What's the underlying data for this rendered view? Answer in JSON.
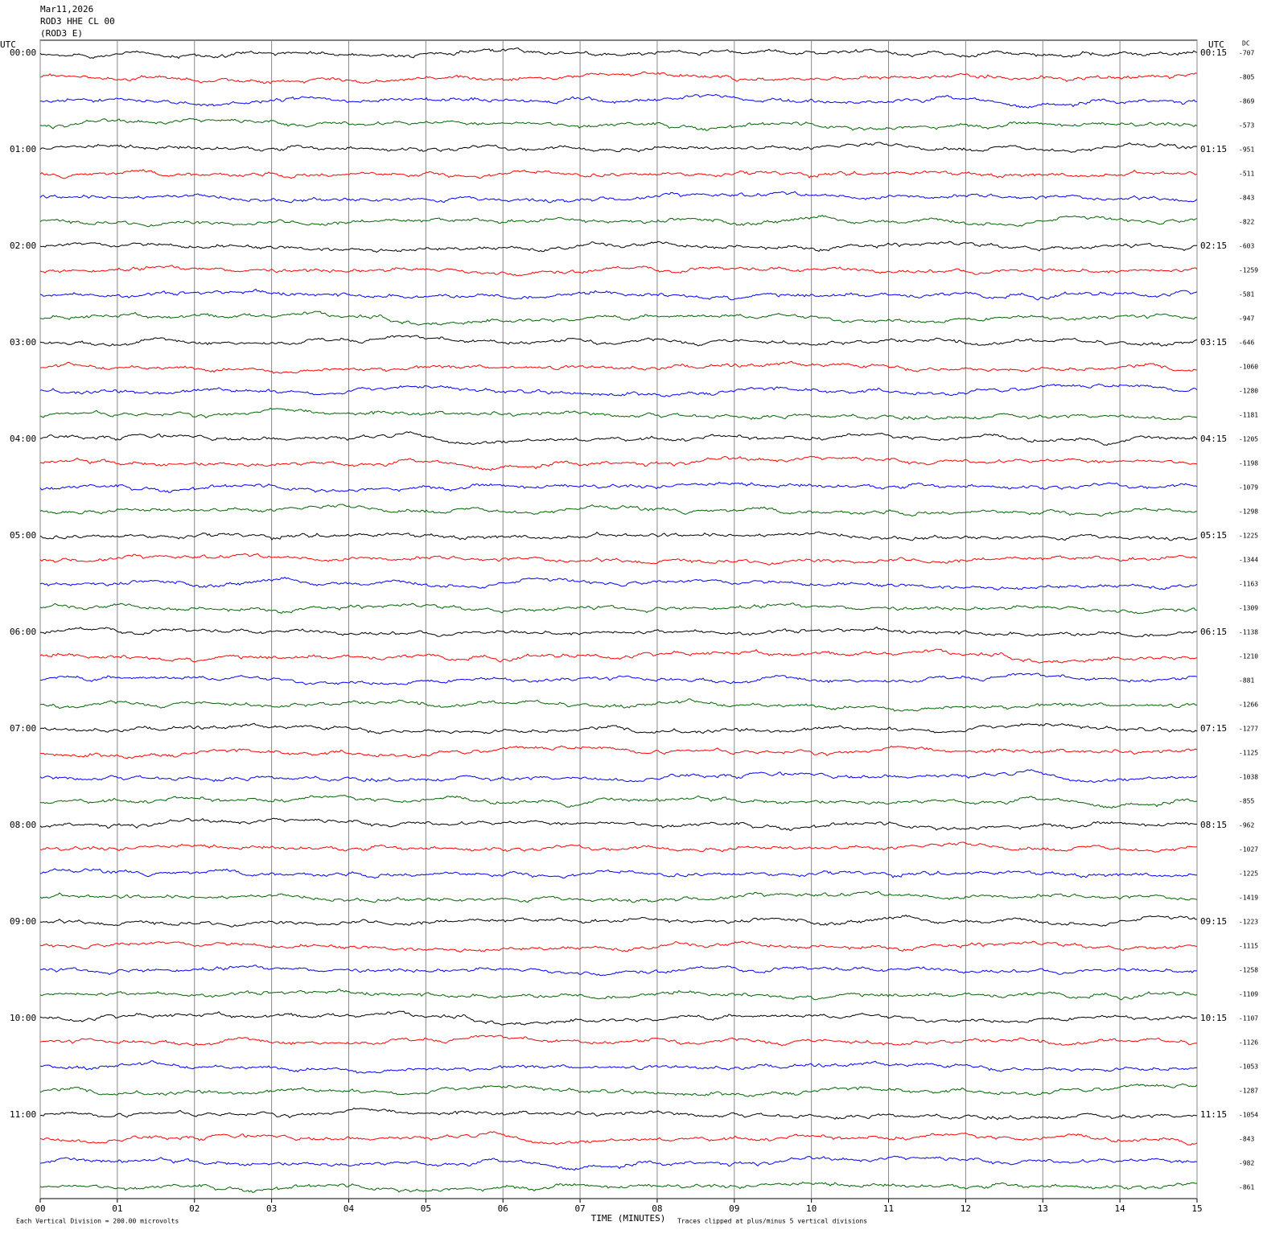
{
  "chart_data": {
    "type": "helicorder",
    "title_lines": [
      "Mar11,2026",
      "ROD3 HHE CL 00",
      "(ROD3 E)"
    ],
    "left_axis_label": "UTC",
    "right_axis_label": "UTC",
    "dc_label": "DC",
    "xlabel": "TIME (MINUTES)",
    "scale_note": "Each Vertical Division =  200.00 microvolts",
    "clip_note": "Traces clipped at plus/minus 5 vertical divisions",
    "xlim": [
      0,
      15
    ],
    "xticks": [
      {
        "value": 0,
        "label": "00"
      },
      {
        "value": 1,
        "label": "01"
      },
      {
        "value": 2,
        "label": "02"
      },
      {
        "value": 3,
        "label": "03"
      },
      {
        "value": 4,
        "label": "04"
      },
      {
        "value": 5,
        "label": "05"
      },
      {
        "value": 6,
        "label": "06"
      },
      {
        "value": 7,
        "label": "07"
      },
      {
        "value": 8,
        "label": "08"
      },
      {
        "value": 9,
        "label": "09"
      },
      {
        "value": 10,
        "label": "10"
      },
      {
        "value": 11,
        "label": "11"
      },
      {
        "value": 12,
        "label": "12"
      },
      {
        "value": 13,
        "label": "13"
      },
      {
        "value": 14,
        "label": "14"
      },
      {
        "value": 15,
        "label": "15"
      }
    ],
    "grid": true,
    "trace_colors": [
      "#000000",
      "#ff0000",
      "#0000ff",
      "#006400"
    ],
    "left_times": [
      "00:00",
      "01:00",
      "02:00",
      "03:00",
      "04:00",
      "05:00",
      "06:00",
      "07:00",
      "08:00",
      "09:00",
      "10:00",
      "11:00"
    ],
    "right_times": [
      "00:15",
      "01:15",
      "02:15",
      "03:15",
      "04:15",
      "05:15",
      "06:15",
      "07:15",
      "08:15",
      "09:15",
      "10:15",
      "11:15"
    ],
    "dc_values": [
      -707,
      -805,
      -869,
      -573,
      -951,
      -511,
      -843,
      -822,
      -603,
      -1259,
      -581,
      -947,
      -646,
      -1060,
      -1280,
      -1181,
      -1205,
      -1198,
      -1079,
      -1298,
      -1225,
      -1344,
      -1163,
      -1309,
      -1138,
      -1210,
      -881,
      -1266,
      -1277,
      -1125,
      -1038,
      -855,
      -962,
      -1027,
      -1225,
      -1419,
      -1223,
      -1115,
      -1258,
      -1109,
      -1107,
      -1126,
      -1053,
      -1287,
      -1054,
      -843,
      -982,
      -861
    ]
  }
}
